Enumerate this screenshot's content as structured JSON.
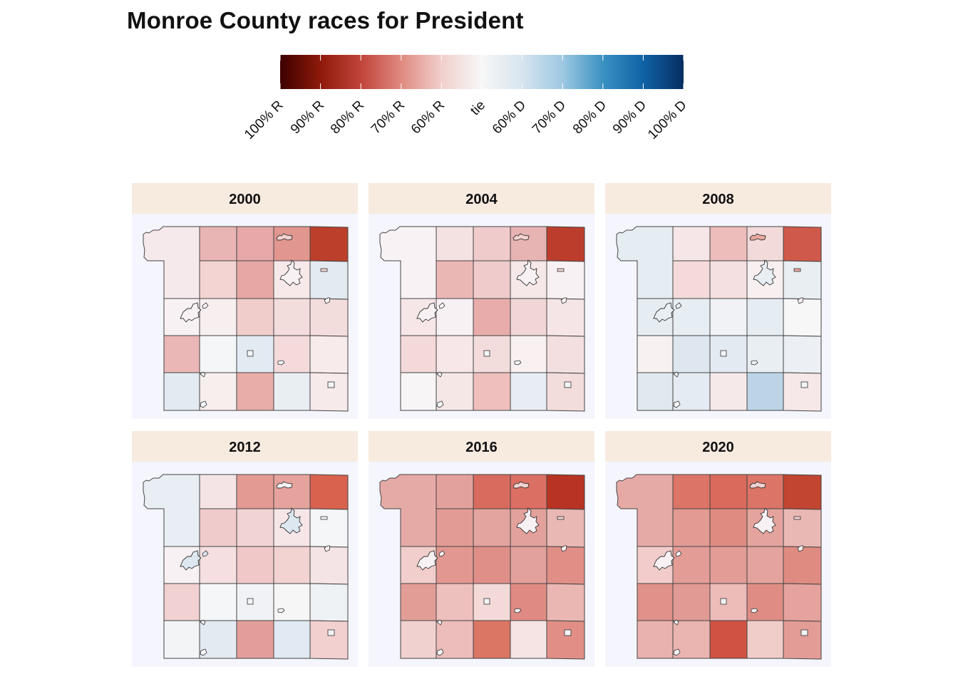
{
  "title": "Monroe County races for President",
  "legend": {
    "labels": [
      "100% R",
      "90% R",
      "80% R",
      "70% R",
      "60% R",
      "tie",
      "60% D",
      "70% D",
      "80% D",
      "90% D",
      "100% D"
    ],
    "colors": [
      "#3d0000",
      "#8e1a0b",
      "#c1443a",
      "#df8a80",
      "#f1cfcc",
      "#f7f7f7",
      "#d7e4ef",
      "#9ec8e2",
      "#3a91c2",
      "#0f62a5",
      "#062e61"
    ]
  },
  "panels": [
    {
      "year": "2000",
      "cells": [
        [
          "#f6e9eb",
          "#e8b4b4",
          "#e6a8a8",
          "#e19690",
          "#bc3f2b"
        ],
        [
          null,
          "#f3d4d2",
          "#e6a8a5",
          "#f7e9ea",
          "#e3eaf0"
        ],
        [
          "#f8f1f3",
          "#f7eef0",
          "#f0cdcb",
          "#f3dddc",
          "#f3dddc"
        ],
        [
          "#ebb6b6",
          "#f5f6f8",
          "#e2eaf2",
          "#f5dadc",
          "#f7ebec"
        ],
        [
          "#e3eaf2",
          "#f7eeee",
          "#e8ada8",
          "#e9eef3",
          "#f6eaeb"
        ]
      ],
      "city": "#f7f1f3",
      "town": "#f4d2d0"
    },
    {
      "year": "2004",
      "cells": [
        [
          "#f8f2f4",
          "#f4e1e2",
          "#f0cbcb",
          "#e8b3b3",
          "#bd3d2d"
        ],
        [
          null,
          "#ebb7b4",
          "#f0cbcb",
          "#f6e7e8",
          "#f8f1f3"
        ],
        [
          "#f6e6e8",
          "#f8f1f3",
          "#e8adab",
          "#f2d6d6",
          "#f6e5e7"
        ],
        [
          "#f3d9d9",
          "#f7e7e8",
          "#f3dcdc",
          "#f8f0f1",
          "#f4dfe0"
        ],
        [
          "#f7f5f6",
          "#f6e7e7",
          "#eebfbc",
          "#e7edf2",
          "#f3dcdc"
        ]
      ],
      "city": "#f7f1f3",
      "town": "#f4d2d0"
    },
    {
      "year": "2008",
      "cells": [
        [
          "#e6edf2",
          "#f6e6e7",
          "#ecbdba",
          "#f3dada",
          "#cf594a"
        ],
        [
          null,
          "#f4dadb",
          "#f4e0e1",
          "#f7eff0",
          "#e8eef2"
        ],
        [
          "#e6edf2",
          "#e7eef3",
          "#f0f2f5",
          "#e6edf2",
          "#f7f7f8"
        ],
        [
          "#f7f1f1",
          "#dee7ef",
          "#e3eaf2",
          "#e9eef3",
          "#ecf0f4"
        ],
        [
          "#e1e9f0",
          "#e4ebf2",
          "#f6e9ea",
          "#bcd4e6",
          "#f6e8e9"
        ]
      ],
      "city": "#e8eef3",
      "town": "#e8a89f"
    },
    {
      "year": "2012",
      "cells": [
        [
          "#e8eef3",
          "#f4e4e5",
          "#e39a93",
          "#e6a29c",
          "#d9624f"
        ],
        [
          null,
          "#f0cbcb",
          "#f2d3d3",
          "#f6e6e8",
          "#f5f6f7"
        ],
        [
          "#f8f1f3",
          "#f5dfe0",
          "#f0c8c8",
          "#f2d3d2",
          "#f5e4e5"
        ],
        [
          "#f1d1d1",
          "#f5f6f7",
          "#f0f2f5",
          "#f6f6f6",
          "#eff2f5"
        ],
        [
          "#f2f4f6",
          "#e3eaf2",
          "#e39e99",
          "#e1e9f2",
          "#f1d0cf"
        ]
      ],
      "city": "#dde7ef",
      "town": "#f4f4f6"
    },
    {
      "year": "2016",
      "cells": [
        [
          "#e6aaa6",
          "#e3a19c",
          "#d86b5d",
          "#dc6f63",
          "#b83323"
        ],
        [
          null,
          "#e29c95",
          "#e3a39e",
          "#e3a19b",
          "#e9b8b4"
        ],
        [
          "#f1cdcb",
          "#e29890",
          "#e08f88",
          "#e3a19b",
          "#e18e86"
        ],
        [
          "#e39d97",
          "#eec0bd",
          "#f3dad8",
          "#df8b83",
          "#ebb7b3"
        ],
        [
          "#f1d1d0",
          "#ecbdba",
          "#db7564",
          "#f6e4e4",
          "#e18f86"
        ]
      ],
      "city": "#f7f1f3",
      "town": "#f2d2d0"
    },
    {
      "year": "2020",
      "cells": [
        [
          "#e6aaa6",
          "#dc7567",
          "#d96a5c",
          "#dc7467",
          "#c14530"
        ],
        [
          null,
          "#e29a93",
          "#df8b81",
          "#e4a39d",
          "#eab8b4"
        ],
        [
          "#f1cccb",
          "#e39d96",
          "#e39d96",
          "#e4a39d",
          "#df8b82"
        ],
        [
          "#e0918a",
          "#e29a94",
          "#edbcb8",
          "#df8d84",
          "#e6a39d"
        ],
        [
          "#eab2ae",
          "#eab4b0",
          "#cf5243",
          "#f1cdc9",
          "#e39c96"
        ]
      ],
      "city": "#f7f1f3",
      "town": "#f2d2d0"
    }
  ]
}
